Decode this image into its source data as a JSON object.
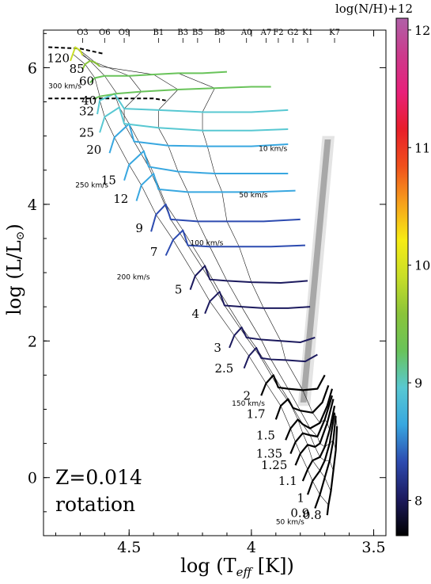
{
  "chart_data": {
    "type": "line",
    "xlabel_main": "log  (T",
    "xlabel_sub": "eff",
    "xlabel_tail": " [K])",
    "ylabel_main": "log  (L/L",
    "ylabel_tail": ")",
    "x_reversed": true,
    "xlim": [
      4.85,
      3.45
    ],
    "ylim": [
      -0.85,
      6.55
    ],
    "xticks": [
      "4.5",
      "4",
      "3.5"
    ],
    "xtick_values": [
      4.5,
      4.0,
      3.5
    ],
    "yticks": [
      "0",
      "2",
      "4",
      "6"
    ],
    "ytick_values": [
      0,
      2,
      4,
      6
    ],
    "annotation_z": "Z=0.014",
    "annotation_rot": "rotation",
    "colorbar": {
      "label": "log(N/H)+12",
      "ticks": [
        "8",
        "9",
        "10",
        "11",
        "12"
      ],
      "tick_values": [
        8,
        9,
        10,
        11,
        12
      ],
      "range": [
        7.7,
        12.1
      ],
      "stops": [
        "#000000",
        "#1c1a5e",
        "#2d4bb0",
        "#38a7e0",
        "#58c8d2",
        "#69c35a",
        "#8ac43a",
        "#c8de28",
        "#f7ec14",
        "#f7a11c",
        "#f0501c",
        "#e81e2a",
        "#e8207a",
        "#cc3a8c",
        "#b060a8"
      ]
    },
    "spectral_types": [
      "O3",
      "O6",
      "O9",
      "B1",
      "B3",
      "B5",
      "B8",
      "A0",
      "A7",
      "F2",
      "G2",
      "K1",
      "K7"
    ],
    "spectral_logT": [
      4.69,
      4.6,
      4.52,
      4.38,
      4.28,
      4.22,
      4.13,
      4.02,
      3.94,
      3.89,
      3.83,
      3.77,
      3.66
    ],
    "masses": [
      {
        "label": "120",
        "logT": 4.73,
        "logL": 6.14
      },
      {
        "label": "85",
        "logT": 4.67,
        "logL": 5.98
      },
      {
        "label": "60",
        "logT": 4.63,
        "logL": 5.8
      },
      {
        "label": "40",
        "logT": 4.62,
        "logL": 5.52
      },
      {
        "label": "32",
        "logT": 4.63,
        "logL": 5.36
      },
      {
        "label": "25",
        "logT": 4.63,
        "logL": 5.05
      },
      {
        "label": "20",
        "logT": 4.6,
        "logL": 4.8
      },
      {
        "label": "15",
        "logT": 4.54,
        "logL": 4.35
      },
      {
        "label": "12",
        "logT": 4.49,
        "logL": 4.08
      },
      {
        "label": "9",
        "logT": 4.43,
        "logL": 3.65
      },
      {
        "label": "7",
        "logT": 4.37,
        "logL": 3.3
      },
      {
        "label": "5",
        "logT": 4.27,
        "logL": 2.75
      },
      {
        "label": "4",
        "logT": 4.2,
        "logL": 2.4
      },
      {
        "label": "3",
        "logT": 4.11,
        "logL": 1.9
      },
      {
        "label": "2.5",
        "logT": 4.06,
        "logL": 1.6
      },
      {
        "label": "2",
        "logT": 3.99,
        "logL": 1.2
      },
      {
        "label": "1.7",
        "logT": 3.93,
        "logL": 0.93
      },
      {
        "label": "1.5",
        "logT": 3.89,
        "logL": 0.62
      },
      {
        "label": "1.35",
        "logT": 3.86,
        "logL": 0.35
      },
      {
        "label": "1.25",
        "logT": 3.84,
        "logL": 0.18
      },
      {
        "label": "1.1",
        "logT": 3.8,
        "logL": -0.05
      },
      {
        "label": "1",
        "logT": 3.77,
        "logL": -0.3
      },
      {
        "label": "0.9",
        "logT": 3.75,
        "logL": -0.52
      },
      {
        "label": "0.8",
        "logT": 3.7,
        "logL": -0.55
      }
    ],
    "mass_label_text": [
      "120",
      "85",
      "60",
      "40",
      "32",
      "25",
      "20",
      "15",
      "12",
      "9",
      "7",
      "5",
      "4",
      "3",
      "2.5",
      "2",
      "1.7",
      "1.5",
      "1.35",
      "1.25",
      "1.1",
      "1",
      "0.9",
      "0.8"
    ],
    "velocity_labels": [
      "300 km/s",
      "250 km/s",
      "200 km/s",
      "150 km/s",
      "100 km/s",
      "50 km/s",
      "10 km/s",
      "50 km/s"
    ],
    "tracks": [
      {
        "mass": 0.8,
        "logN": 7.8,
        "ms": [
          [
            3.69,
            -0.55
          ],
          [
            3.685,
            -0.4
          ],
          [
            3.675,
            -0.2
          ],
          [
            3.665,
            0.1
          ],
          [
            3.655,
            0.4
          ],
          [
            3.65,
            0.75
          ]
        ]
      },
      {
        "mass": 0.9,
        "logN": 7.8,
        "ms": [
          [
            3.74,
            -0.45
          ],
          [
            3.72,
            -0.25
          ],
          [
            3.7,
            0.0
          ],
          [
            3.68,
            0.25
          ],
          [
            3.665,
            0.55
          ],
          [
            3.655,
            0.9
          ]
        ]
      },
      {
        "mass": 1.0,
        "logN": 7.8,
        "ms": [
          [
            3.77,
            -0.25
          ],
          [
            3.75,
            -0.05
          ],
          [
            3.72,
            0.1
          ],
          [
            3.7,
            0.25
          ],
          [
            3.68,
            0.5
          ],
          [
            3.66,
            0.95
          ]
        ]
      },
      {
        "mass": 1.1,
        "logN": 7.8,
        "ms": [
          [
            3.79,
            -0.05
          ],
          [
            3.77,
            0.12
          ],
          [
            3.75,
            0.25
          ],
          [
            3.72,
            0.3
          ],
          [
            3.7,
            0.45
          ],
          [
            3.68,
            0.7
          ],
          [
            3.66,
            1.05
          ]
        ]
      },
      {
        "mass": 1.25,
        "logN": 7.8,
        "ms": [
          [
            3.82,
            0.18
          ],
          [
            3.8,
            0.35
          ],
          [
            3.77,
            0.48
          ],
          [
            3.74,
            0.45
          ],
          [
            3.72,
            0.5
          ],
          [
            3.69,
            0.8
          ],
          [
            3.665,
            1.15
          ]
        ]
      },
      {
        "mass": 1.35,
        "logN": 7.8,
        "ms": [
          [
            3.84,
            0.35
          ],
          [
            3.82,
            0.52
          ],
          [
            3.79,
            0.65
          ],
          [
            3.76,
            0.62
          ],
          [
            3.73,
            0.6
          ],
          [
            3.7,
            0.85
          ],
          [
            3.67,
            1.2
          ]
        ]
      },
      {
        "mass": 1.5,
        "logN": 7.8,
        "ms": [
          [
            3.86,
            0.55
          ],
          [
            3.84,
            0.72
          ],
          [
            3.81,
            0.85
          ],
          [
            3.79,
            0.78
          ],
          [
            3.76,
            0.72
          ],
          [
            3.72,
            0.8
          ],
          [
            3.69,
            1.05
          ],
          [
            3.67,
            1.3
          ]
        ]
      },
      {
        "mass": 1.7,
        "logN": 7.85,
        "ms": [
          [
            3.9,
            0.85
          ],
          [
            3.88,
            1.05
          ],
          [
            3.85,
            1.15
          ],
          [
            3.83,
            1.02
          ],
          [
            3.8,
            0.98
          ],
          [
            3.75,
            0.95
          ],
          [
            3.71,
            1.1
          ],
          [
            3.685,
            1.35
          ]
        ]
      },
      {
        "mass": 2.0,
        "logN": 7.9,
        "ms": [
          [
            3.96,
            1.2
          ],
          [
            3.94,
            1.38
          ],
          [
            3.91,
            1.5
          ],
          [
            3.89,
            1.32
          ],
          [
            3.85,
            1.3
          ],
          [
            3.79,
            1.28
          ],
          [
            3.73,
            1.3
          ],
          [
            3.7,
            1.5
          ]
        ]
      },
      {
        "mass": 2.5,
        "logN": 7.95,
        "ms": [
          [
            4.03,
            1.6
          ],
          [
            4.01,
            1.78
          ],
          [
            3.98,
            1.9
          ],
          [
            3.96,
            1.75
          ],
          [
            3.92,
            1.73
          ],
          [
            3.86,
            1.72
          ],
          [
            3.78,
            1.7
          ],
          [
            3.73,
            1.8
          ]
        ]
      },
      {
        "mass": 3.0,
        "logN": 8.0,
        "ms": [
          [
            4.09,
            1.9
          ],
          [
            4.07,
            2.08
          ],
          [
            4.04,
            2.2
          ],
          [
            4.02,
            2.05
          ],
          [
            3.96,
            2.02
          ],
          [
            3.88,
            2.0
          ],
          [
            3.8,
            1.98
          ],
          [
            3.74,
            2.05
          ]
        ]
      },
      {
        "mass": 4.0,
        "logN": 8.1,
        "ms": [
          [
            4.19,
            2.4
          ],
          [
            4.17,
            2.58
          ],
          [
            4.13,
            2.72
          ],
          [
            4.11,
            2.52
          ],
          [
            4.04,
            2.5
          ],
          [
            3.95,
            2.48
          ],
          [
            3.85,
            2.48
          ],
          [
            3.76,
            2.5
          ]
        ]
      },
      {
        "mass": 5.0,
        "logN": 8.15,
        "ms": [
          [
            4.25,
            2.75
          ],
          [
            4.23,
            2.95
          ],
          [
            4.19,
            3.1
          ],
          [
            4.17,
            2.9
          ],
          [
            4.1,
            2.88
          ],
          [
            4.0,
            2.86
          ],
          [
            3.88,
            2.85
          ],
          [
            3.77,
            2.88
          ]
        ]
      },
      {
        "mass": 7.0,
        "logN": 8.25,
        "ms": [
          [
            4.35,
            3.25
          ],
          [
            4.32,
            3.48
          ],
          [
            4.28,
            3.62
          ],
          [
            4.26,
            3.4
          ],
          [
            4.17,
            3.38
          ],
          [
            4.05,
            3.38
          ],
          [
            3.92,
            3.38
          ],
          [
            3.78,
            3.4
          ]
        ]
      },
      {
        "mass": 9.0,
        "logN": 8.35,
        "ms": [
          [
            4.41,
            3.6
          ],
          [
            4.39,
            3.85
          ],
          [
            4.35,
            4.0
          ],
          [
            4.33,
            3.78
          ],
          [
            4.22,
            3.75
          ],
          [
            4.1,
            3.75
          ],
          [
            3.95,
            3.75
          ],
          [
            3.8,
            3.78
          ]
        ]
      },
      {
        "mass": 12.0,
        "logN": 8.5,
        "ms": [
          [
            4.47,
            4.05
          ],
          [
            4.45,
            4.28
          ],
          [
            4.4,
            4.45
          ],
          [
            4.38,
            4.22
          ],
          [
            4.26,
            4.18
          ],
          [
            4.12,
            4.18
          ],
          [
            3.98,
            4.18
          ],
          [
            3.82,
            4.2
          ]
        ]
      },
      {
        "mass": 15.0,
        "logN": 8.6,
        "ms": [
          [
            4.52,
            4.35
          ],
          [
            4.5,
            4.58
          ],
          [
            4.44,
            4.78
          ],
          [
            4.42,
            4.55
          ],
          [
            4.3,
            4.48
          ],
          [
            4.15,
            4.45
          ],
          [
            4.0,
            4.45
          ],
          [
            3.85,
            4.45
          ]
        ]
      },
      {
        "mass": 20.0,
        "logN": 8.75,
        "ms": [
          [
            4.58,
            4.75
          ],
          [
            4.56,
            4.98
          ],
          [
            4.5,
            5.18
          ],
          [
            4.48,
            4.92
          ],
          [
            4.34,
            4.86
          ],
          [
            4.18,
            4.85
          ],
          [
            4.0,
            4.85
          ],
          [
            3.85,
            4.88
          ]
        ]
      },
      {
        "mass": 25.0,
        "logN": 8.9,
        "ms": [
          [
            4.62,
            5.05
          ],
          [
            4.6,
            5.28
          ],
          [
            4.54,
            5.42
          ],
          [
            4.52,
            5.18
          ],
          [
            4.38,
            5.12
          ],
          [
            4.2,
            5.08
          ],
          [
            4.0,
            5.08
          ],
          [
            3.85,
            5.1
          ]
        ]
      },
      {
        "mass": 32.0,
        "logN": 9.0,
        "ms": [
          [
            4.63,
            5.32
          ],
          [
            4.62,
            5.52
          ],
          [
            4.56,
            5.62
          ],
          [
            4.52,
            5.4
          ],
          [
            4.38,
            5.38
          ],
          [
            4.2,
            5.35
          ],
          [
            4.0,
            5.35
          ],
          [
            3.85,
            5.38
          ]
        ]
      },
      {
        "mass": 40.0,
        "logN": 9.2,
        "ms": [
          [
            4.64,
            5.55
          ],
          [
            4.62,
            5.58
          ],
          [
            4.55,
            5.62
          ],
          [
            4.45,
            5.65
          ],
          [
            4.3,
            5.68
          ],
          [
            4.15,
            5.7
          ],
          [
            4.0,
            5.72
          ],
          [
            3.92,
            5.72
          ]
        ]
      },
      {
        "mass": 60.0,
        "logN": 9.3,
        "ms": [
          [
            4.66,
            5.78
          ],
          [
            4.64,
            5.85
          ],
          [
            4.6,
            5.88
          ],
          [
            4.5,
            5.88
          ],
          [
            4.4,
            5.9
          ],
          [
            4.3,
            5.92
          ],
          [
            4.2,
            5.92
          ],
          [
            4.1,
            5.94
          ]
        ]
      },
      {
        "mass": 85.0,
        "logN": 9.5,
        "ms": [
          [
            4.69,
            5.98
          ],
          [
            4.68,
            6.05
          ],
          [
            4.66,
            6.1
          ],
          [
            4.64,
            6.08
          ],
          [
            4.62,
            6.02
          ]
        ]
      },
      {
        "mass": 120.0,
        "logN": 10.0,
        "ms": [
          [
            4.74,
            6.1
          ],
          [
            4.73,
            6.2
          ],
          [
            4.72,
            6.3
          ],
          [
            4.7,
            6.25
          ],
          [
            4.69,
            6.18
          ]
        ]
      }
    ]
  }
}
